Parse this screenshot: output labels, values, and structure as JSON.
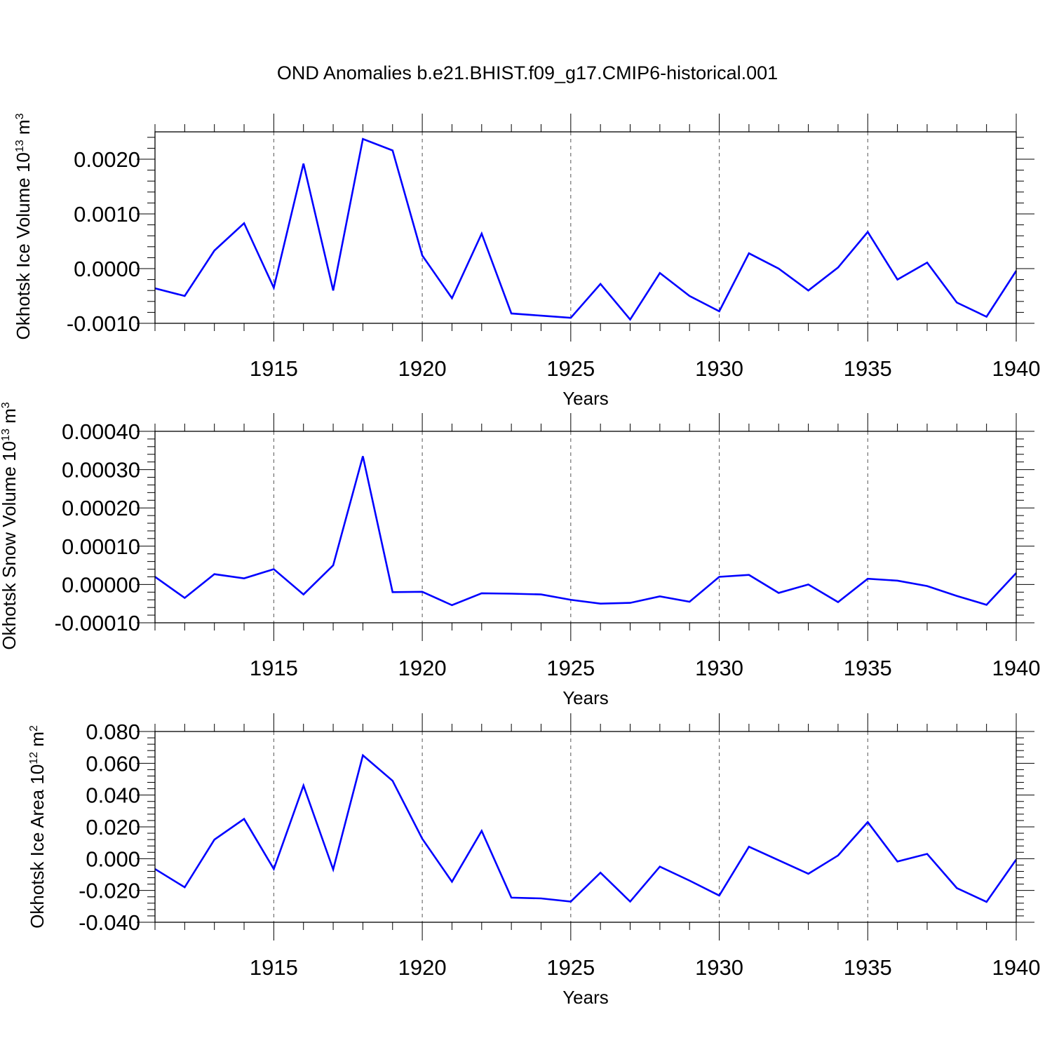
{
  "title": "OND Anomalies b.e21.BHIST.f09_g17.CMIP6-historical.001",
  "chart_data": [
    {
      "type": "line",
      "title": "",
      "xlabel": "Years",
      "ylabel": {
        "text": "Okhotsk Ice Volume 10",
        "exp": "13",
        "unit": " m",
        "unit_exp": "3"
      },
      "xlim": [
        1911,
        1940
      ],
      "ylim": [
        -0.001,
        0.0025
      ],
      "x_ticks": [
        1915,
        1920,
        1925,
        1930,
        1935,
        1940
      ],
      "x_tick_labels": [
        "1915",
        "1920",
        "1925",
        "1930",
        "1935",
        "1940"
      ],
      "y_ticks": [
        -0.001,
        0.0,
        0.001,
        0.002
      ],
      "y_tick_labels": [
        "-0.0010",
        "0.0000",
        "0.0010",
        "0.0020"
      ],
      "grid": "vertical dashed at major x ticks",
      "series": [
        {
          "color": "#0000ff",
          "x": [
            1911,
            1912,
            1913,
            1914,
            1915,
            1916,
            1917,
            1918,
            1919,
            1920,
            1921,
            1922,
            1923,
            1924,
            1925,
            1926,
            1927,
            1928,
            1929,
            1930,
            1931,
            1932,
            1933,
            1934,
            1935,
            1936,
            1937,
            1938,
            1939,
            1940
          ],
          "values": [
            -0.00036,
            -0.0005,
            0.00033,
            0.00083,
            -0.00035,
            0.00192,
            -0.0004,
            0.00237,
            0.00216,
            0.00024,
            -0.00054,
            0.00064,
            -0.00082,
            -0.00086,
            -0.0009,
            -0.00028,
            -0.00093,
            -8e-05,
            -0.0005,
            -0.00078,
            0.00028,
            0.0,
            -0.0004,
            2e-05,
            0.00067,
            -0.0002,
            0.00011,
            -0.00062,
            -0.00088,
            -4e-05
          ]
        }
      ]
    },
    {
      "type": "line",
      "title": "",
      "xlabel": "Years",
      "ylabel": {
        "text": "Okhotsk Snow Volume 10",
        "exp": "13",
        "unit": " m",
        "unit_exp": "3"
      },
      "xlim": [
        1911,
        1940
      ],
      "ylim": [
        -0.0001,
        0.0004
      ],
      "x_ticks": [
        1915,
        1920,
        1925,
        1930,
        1935,
        1940
      ],
      "x_tick_labels": [
        "1915",
        "1920",
        "1925",
        "1930",
        "1935",
        "1940"
      ],
      "y_ticks": [
        -0.0001,
        0.0,
        0.0001,
        0.0002,
        0.0003,
        0.0004
      ],
      "y_tick_labels": [
        "-0.00010",
        "0.00000",
        "0.00010",
        "0.00020",
        "0.00030",
        "0.00040"
      ],
      "grid": "vertical dashed at major x ticks",
      "series": [
        {
          "color": "#0000ff",
          "x": [
            1911,
            1912,
            1913,
            1914,
            1915,
            1916,
            1917,
            1918,
            1919,
            1920,
            1921,
            1922,
            1923,
            1924,
            1925,
            1926,
            1927,
            1928,
            1929,
            1930,
            1931,
            1932,
            1933,
            1934,
            1935,
            1936,
            1937,
            1938,
            1939,
            1940
          ],
          "values": [
            2e-05,
            -3.5e-05,
            2.7e-05,
            1.6e-05,
            4e-05,
            -2.6e-05,
            5e-05,
            0.000335,
            -2e-05,
            -1.9e-05,
            -5.4e-05,
            -2.3e-05,
            -2.4e-05,
            -2.6e-05,
            -4e-05,
            -5e-05,
            -4.8e-05,
            -3.1e-05,
            -4.5e-05,
            2e-05,
            2.5e-05,
            -2.2e-05,
            0.0,
            -4.6e-05,
            1.5e-05,
            1e-05,
            -4e-06,
            -3e-05,
            -5.3e-05,
            3e-05
          ]
        }
      ]
    },
    {
      "type": "line",
      "title": "",
      "xlabel": "Years",
      "ylabel": {
        "text": "Okhotsk Ice Area 10",
        "exp": "12",
        "unit": " m",
        "unit_exp": "2"
      },
      "xlim": [
        1911,
        1940
      ],
      "ylim": [
        -0.04,
        0.08
      ],
      "x_ticks": [
        1915,
        1920,
        1925,
        1930,
        1935,
        1940
      ],
      "x_tick_labels": [
        "1915",
        "1920",
        "1925",
        "1930",
        "1935",
        "1940"
      ],
      "y_ticks": [
        -0.04,
        -0.02,
        0.0,
        0.02,
        0.04,
        0.06,
        0.08
      ],
      "y_tick_labels": [
        "-0.040",
        "-0.020",
        "0.000",
        "0.020",
        "0.040",
        "0.060",
        "0.080"
      ],
      "grid": "vertical dashed at major x ticks",
      "series": [
        {
          "color": "#0000ff",
          "x": [
            1911,
            1912,
            1913,
            1914,
            1915,
            1916,
            1917,
            1918,
            1919,
            1920,
            1921,
            1922,
            1923,
            1924,
            1925,
            1926,
            1927,
            1928,
            1929,
            1930,
            1931,
            1932,
            1933,
            1934,
            1935,
            1936,
            1937,
            1938,
            1939,
            1940
          ],
          "values": [
            -0.0065,
            -0.018,
            0.012,
            0.025,
            -0.0065,
            0.046,
            -0.0068,
            0.065,
            0.049,
            0.0125,
            -0.0145,
            0.0175,
            -0.0245,
            -0.025,
            -0.027,
            -0.0088,
            -0.027,
            -0.005,
            -0.0138,
            -0.0232,
            0.0075,
            -0.001,
            -0.0095,
            0.002,
            0.023,
            -0.0018,
            0.003,
            -0.0185,
            -0.0272,
            -0.0005
          ]
        }
      ]
    }
  ]
}
